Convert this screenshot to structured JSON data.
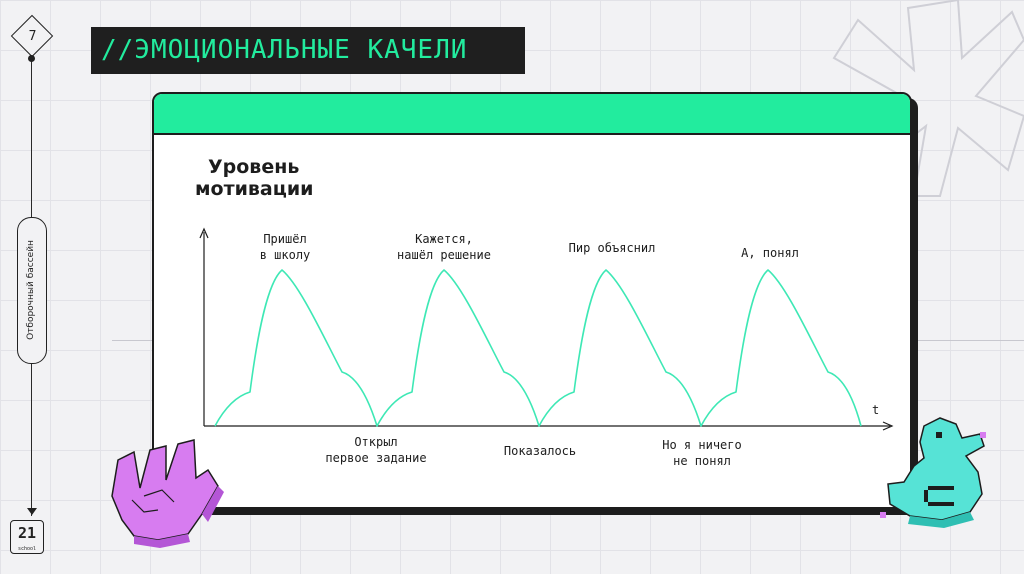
{
  "slide": {
    "number": "7",
    "title": "//ЭМОЦИОНАЛЬНЫЕ КАЧЕЛИ",
    "section_label": "Отборочный бассейн",
    "logo_mark": "21",
    "logo_sub": "school"
  },
  "diagram": {
    "y_axis_label_line1": "Уровень",
    "y_axis_label_line2": "мотивации",
    "x_axis_label": "t",
    "peaks": [
      {
        "label_line1": "Пришёл",
        "label_line2": "в школу"
      },
      {
        "label_line1": "Кажется,",
        "label_line2": "нашёл решение"
      },
      {
        "label_line1": "Пир объяснил",
        "label_line2": ""
      },
      {
        "label_line1": "А, понял",
        "label_line2": ""
      }
    ],
    "troughs": [
      {
        "label_line1": "Открыл",
        "label_line2": "первое задание"
      },
      {
        "label_line1": "Показалось",
        "label_line2": ""
      },
      {
        "label_line1": "Но я ничего",
        "label_line2": "не понял"
      }
    ]
  },
  "colors": {
    "accent": "#22ec9e",
    "curve": "#3ee8b5",
    "dark": "#1d1d1d",
    "hand": "#d77cf0",
    "duck": "#56e3d6"
  },
  "decorations": [
    "asterisk-outline-icon",
    "pixel-hand-icon",
    "pixel-duck-icon"
  ]
}
